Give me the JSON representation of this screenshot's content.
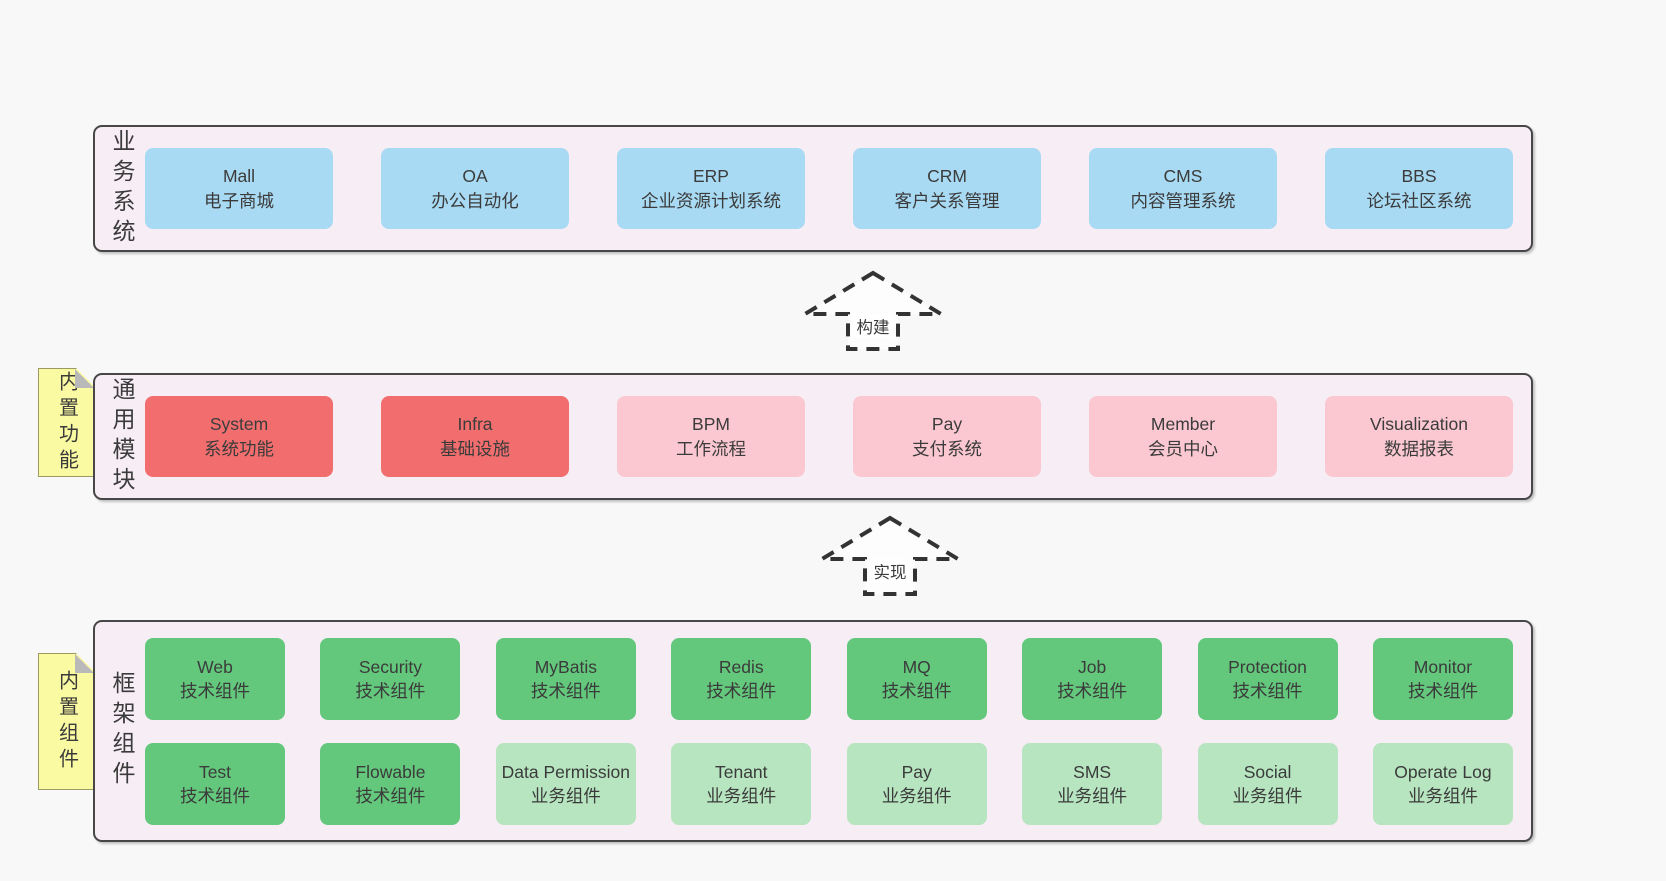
{
  "colors": {
    "page_bg": "#f8f8f8",
    "panel_bg": "#f7edf5",
    "panel_border": "#474747",
    "text": "#3b3b3b",
    "blue": "#a8daf3",
    "red": "#f26e6e",
    "pink": "#fbc8d2",
    "green": "#63c87c",
    "lightgreen": "#b7e5c0",
    "note_bg": "#fafaa2",
    "note_fold": "#b9b9b9",
    "arrow_stroke": "#333333"
  },
  "arrows": [
    {
      "label": "构建"
    },
    {
      "label": "实现"
    }
  ],
  "sections": {
    "business": {
      "label": "业务系统",
      "boxes": [
        {
          "en": "Mall",
          "zh": "电子商城",
          "type": "blue"
        },
        {
          "en": "OA",
          "zh": "办公自动化",
          "type": "blue"
        },
        {
          "en": "ERP",
          "zh": "企业资源计划系统",
          "type": "blue"
        },
        {
          "en": "CRM",
          "zh": "客户关系管理",
          "type": "blue"
        },
        {
          "en": "CMS",
          "zh": "内容管理系统",
          "type": "blue"
        },
        {
          "en": "BBS",
          "zh": "论坛社区系统",
          "type": "blue"
        }
      ]
    },
    "modules": {
      "label": "通用模块",
      "note": "内置功能",
      "boxes": [
        {
          "en": "System",
          "zh": "系统功能",
          "type": "red"
        },
        {
          "en": "Infra",
          "zh": "基础设施",
          "type": "red"
        },
        {
          "en": "BPM",
          "zh": "工作流程",
          "type": "pink"
        },
        {
          "en": "Pay",
          "zh": "支付系统",
          "type": "pink"
        },
        {
          "en": "Member",
          "zh": "会员中心",
          "type": "pink"
        },
        {
          "en": "Visualization",
          "zh": "数据报表",
          "type": "pink"
        }
      ]
    },
    "components": {
      "label": "框架组件",
      "note": "内置组件",
      "rows": [
        [
          {
            "en": "Web",
            "zh": "技术组件",
            "type": "green"
          },
          {
            "en": "Security",
            "zh": "技术组件",
            "type": "green"
          },
          {
            "en": "MyBatis",
            "zh": "技术组件",
            "type": "green"
          },
          {
            "en": "Redis",
            "zh": "技术组件",
            "type": "green"
          },
          {
            "en": "MQ",
            "zh": "技术组件",
            "type": "green"
          },
          {
            "en": "Job",
            "zh": "技术组件",
            "type": "green"
          },
          {
            "en": "Protection",
            "zh": "技术组件",
            "type": "green"
          },
          {
            "en": "Monitor",
            "zh": "技术组件",
            "type": "green"
          }
        ],
        [
          {
            "en": "Test",
            "zh": "技术组件",
            "type": "green"
          },
          {
            "en": "Flowable",
            "zh": "技术组件",
            "type": "green"
          },
          {
            "en": "Data Permission",
            "zh": "业务组件",
            "type": "lightgreen"
          },
          {
            "en": "Tenant",
            "zh": "业务组件",
            "type": "lightgreen"
          },
          {
            "en": "Pay",
            "zh": "业务组件",
            "type": "lightgreen"
          },
          {
            "en": "SMS",
            "zh": "业务组件",
            "type": "lightgreen"
          },
          {
            "en": "Social",
            "zh": "业务组件",
            "type": "lightgreen"
          },
          {
            "en": "Operate Log",
            "zh": "业务组件",
            "type": "lightgreen"
          }
        ]
      ]
    }
  }
}
